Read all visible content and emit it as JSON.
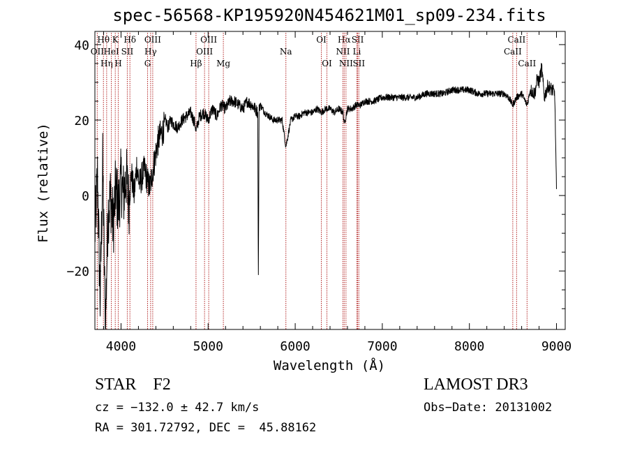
{
  "title": "spec-56568-KP195920N454621M01_sp09-234.fits",
  "footer": {
    "object_class": "STAR",
    "subclass": "F2",
    "object_line": "STAR    F2",
    "survey": "LAMOST DR3",
    "cz_line": "cz = −132.0 ± 42.7 km/s",
    "obs_date_line": "Obs−Date: 20131002",
    "radec_line": "RA = 301.72792, DEC =  45.88162"
  },
  "chart_data": {
    "type": "line",
    "title": "spec-56568-KP195920N454621M01_sp09-234.fits",
    "xlabel": "Wavelength (Å)",
    "ylabel": "Flux (relative)",
    "xlim": [
      3700,
      9100
    ],
    "ylim": [
      -35.5,
      43.5
    ],
    "x_ticks": [
      4000,
      5000,
      6000,
      7000,
      8000,
      9000
    ],
    "y_ticks": [
      -20,
      0,
      20,
      40
    ],
    "x_tick_labels": [
      "4000",
      "5000",
      "6000",
      "7000",
      "8000",
      "9000"
    ],
    "y_tick_labels": [
      "−20",
      "0",
      "20",
      "40"
    ],
    "series": [
      {
        "name": "flux",
        "x": [
          3700,
          3730,
          3760,
          3790,
          3820,
          3850,
          3880,
          3910,
          3940,
          3970,
          4000,
          4030,
          4060,
          4090,
          4120,
          4150,
          4180,
          4210,
          4240,
          4270,
          4300,
          4330,
          4360,
          4390,
          4420,
          4450,
          4480,
          4510,
          4540,
          4570,
          4600,
          4650,
          4700,
          4750,
          4800,
          4850,
          4861,
          4900,
          4950,
          5000,
          5050,
          5100,
          5150,
          5200,
          5250,
          5300,
          5350,
          5400,
          5450,
          5500,
          5540,
          5570,
          5577,
          5585,
          5600,
          5650,
          5700,
          5750,
          5800,
          5850,
          5893,
          5950,
          6000,
          6050,
          6100,
          6150,
          6200,
          6250,
          6300,
          6350,
          6400,
          6450,
          6500,
          6550,
          6563,
          6600,
          6650,
          6700,
          6750,
          6800,
          6900,
          7000,
          7100,
          7200,
          7300,
          7400,
          7500,
          7600,
          7700,
          7800,
          7900,
          8000,
          8100,
          8200,
          8300,
          8400,
          8450,
          8498,
          8542,
          8600,
          8662,
          8700,
          8750,
          8780,
          8800,
          8830,
          8860,
          8900,
          8950,
          8980,
          9000
        ],
        "values": [
          -10,
          5,
          -28,
          8,
          -36,
          -5,
          0,
          -8,
          2,
          -3,
          4,
          0,
          5,
          -2,
          6,
          0,
          8,
          3,
          5,
          7,
          4,
          2,
          6,
          10,
          14,
          16,
          17,
          20,
          18,
          20,
          19,
          18,
          20,
          21,
          22,
          19,
          17,
          21,
          22,
          20,
          23,
          21,
          24,
          23,
          25,
          25,
          24,
          23,
          25,
          24,
          23,
          22,
          -24,
          24,
          24,
          22,
          21,
          20,
          20,
          20,
          13,
          20,
          21,
          21,
          22,
          22,
          22,
          23,
          22,
          23,
          23,
          22,
          23,
          22,
          19,
          23,
          23,
          24,
          24,
          25,
          25,
          26,
          26,
          26,
          26,
          26,
          27,
          27,
          27,
          28,
          28,
          28,
          27,
          27,
          27,
          27,
          26,
          24,
          26,
          27,
          24,
          28,
          27,
          31,
          30,
          34,
          26,
          29,
          28,
          27,
          1
        ]
      }
    ],
    "lines": [
      {
        "label": "OII",
        "wl": 3727,
        "row": 2
      },
      {
        "label": "Hθ",
        "wl": 3798,
        "row": 1
      },
      {
        "label": "Hη",
        "wl": 3835,
        "row": 3
      },
      {
        "label": "HeI",
        "wl": 3889,
        "row": 2
      },
      {
        "label": "K",
        "wl": 3934,
        "row": 1
      },
      {
        "label": "H",
        "wl": 3968,
        "row": 3
      },
      {
        "label": "SII",
        "wl": 4072,
        "row": 2
      },
      {
        "label": "Hδ",
        "wl": 4102,
        "row": 1
      },
      {
        "label": "G",
        "wl": 4305,
        "row": 3
      },
      {
        "label": "OIII",
        "wl": 4364,
        "row": 1
      },
      {
        "label": "Hγ",
        "wl": 4340,
        "row": 2
      },
      {
        "label": "Hβ",
        "wl": 4861,
        "row": 3
      },
      {
        "label": "OIII",
        "wl": 5007,
        "row": 1
      },
      {
        "label": "OIII",
        "wl": 4959,
        "row": 2
      },
      {
        "label": "Mg",
        "wl": 5175,
        "row": 3
      },
      {
        "label": "Na",
        "wl": 5893,
        "row": 2
      },
      {
        "label": "OI",
        "wl": 6300,
        "row": 1
      },
      {
        "label": "OI",
        "wl": 6364,
        "row": 3
      },
      {
        "label": "Hα",
        "wl": 6563,
        "row": 1
      },
      {
        "label": "NII",
        "wl": 6548,
        "row": 2
      },
      {
        "label": "NII",
        "wl": 6583,
        "row": 3
      },
      {
        "label": "SII",
        "wl": 6717,
        "row": 1
      },
      {
        "label": "Li",
        "wl": 6708,
        "row": 2
      },
      {
        "label": "SII",
        "wl": 6731,
        "row": 3
      },
      {
        "label": "CaII",
        "wl": 8542,
        "row": 1
      },
      {
        "label": "CaII",
        "wl": 8498,
        "row": 2
      },
      {
        "label": "CaII",
        "wl": 8662,
        "row": 3
      }
    ]
  }
}
